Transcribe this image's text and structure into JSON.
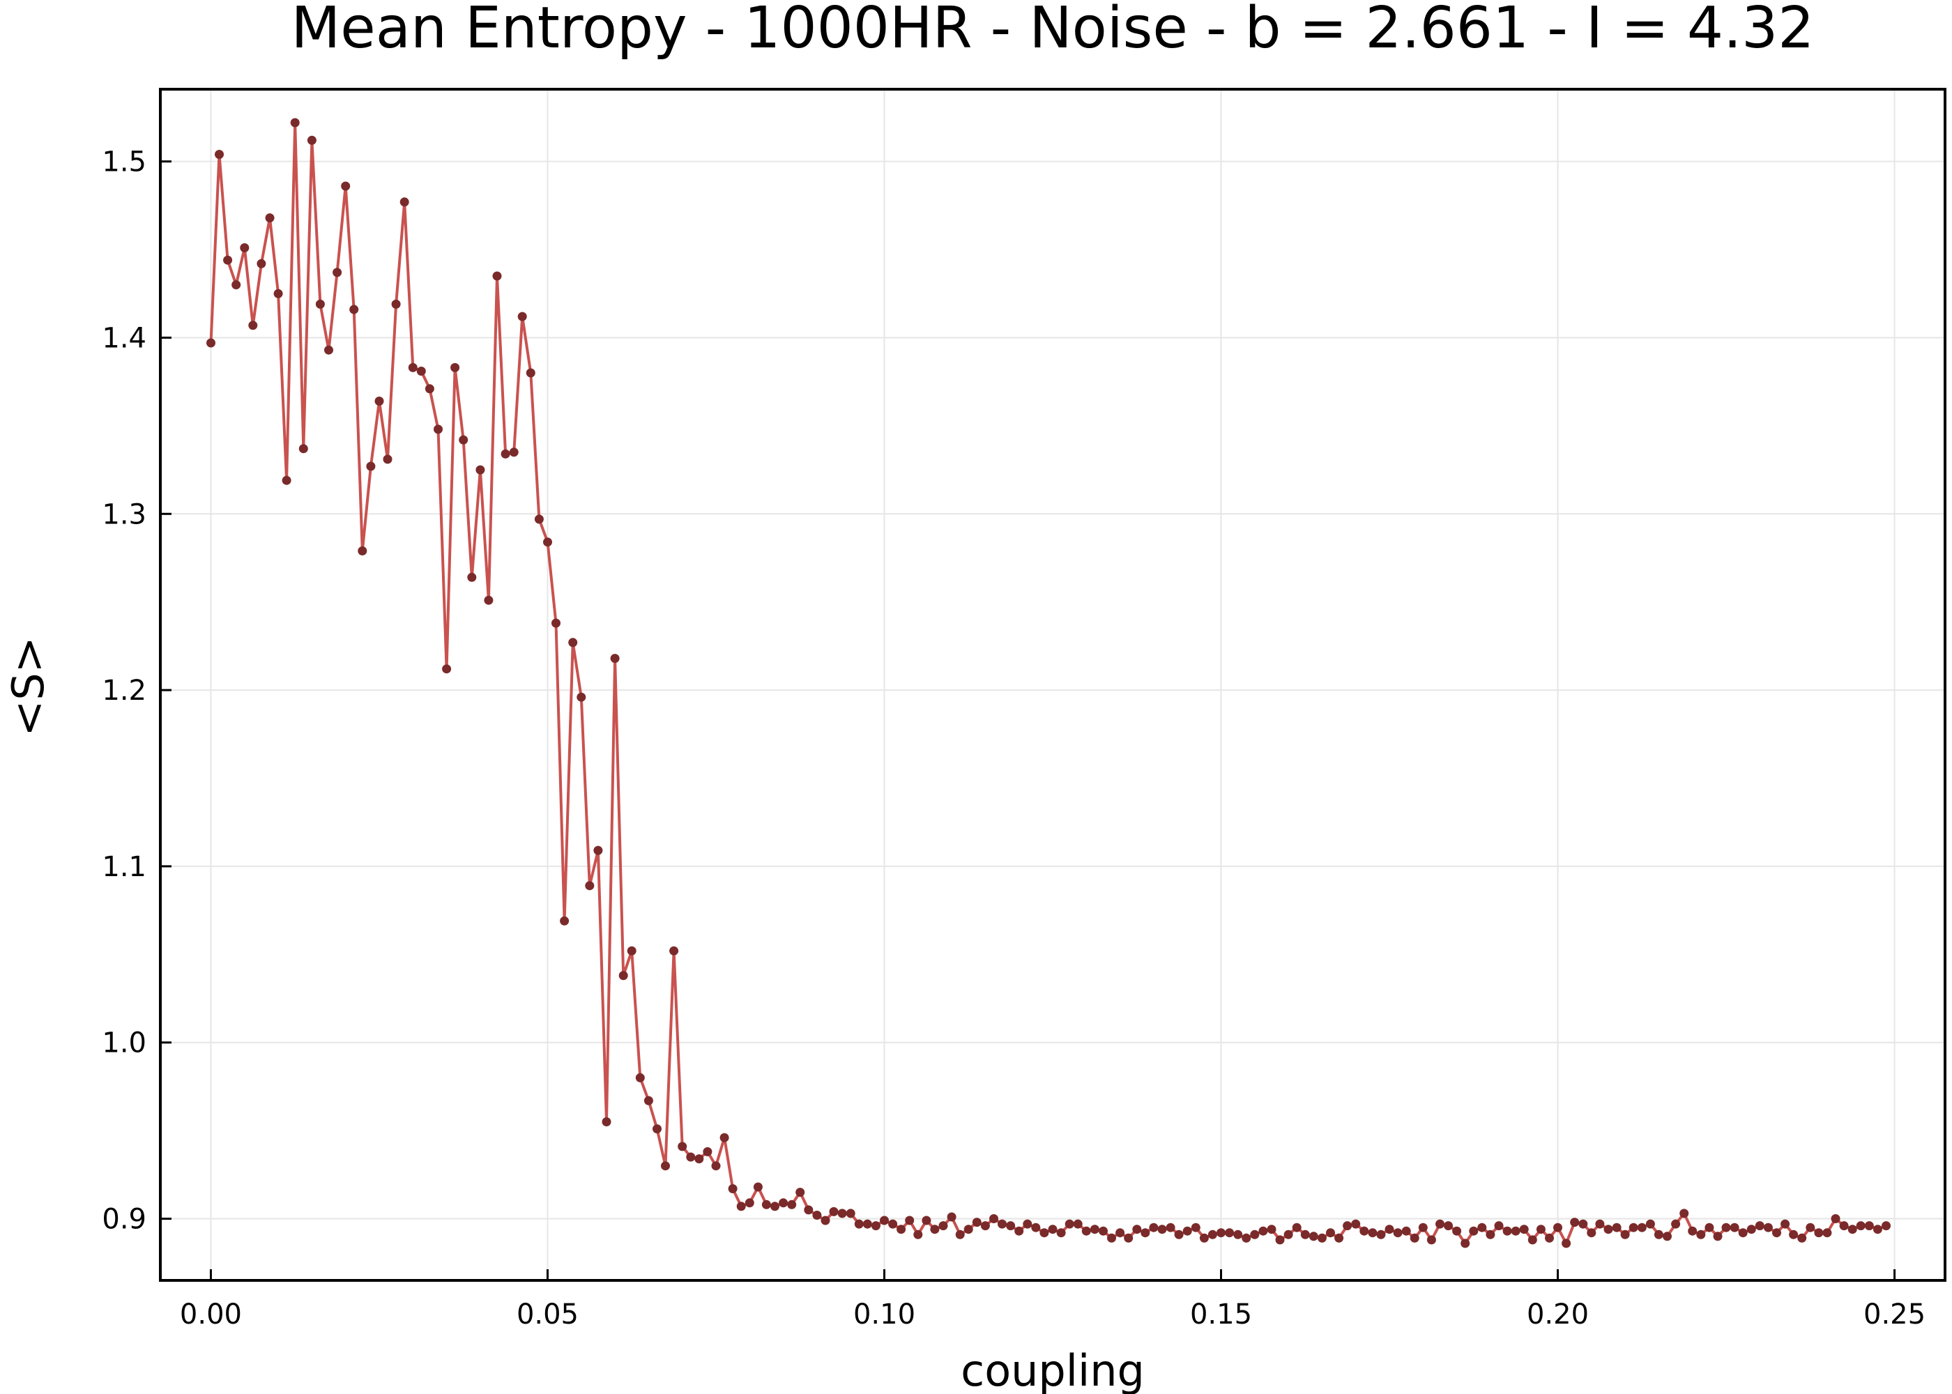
{
  "chart_data": {
    "type": "line",
    "title": "Mean Entropy - 1000HR - Noise - b = 2.661 - I = 4.32",
    "xlabel": "coupling",
    "ylabel": "<S>",
    "xlim": [
      -0.0075,
      0.2575
    ],
    "ylim": [
      0.865,
      1.541
    ],
    "xticks": [
      0.0,
      0.05,
      0.1,
      0.15,
      0.2,
      0.25
    ],
    "xtick_labels": [
      "0.00",
      "0.05",
      "0.10",
      "0.15",
      "0.20",
      "0.25"
    ],
    "yticks": [
      0.9,
      1.0,
      1.1,
      1.2,
      1.3,
      1.4,
      1.5
    ],
    "ytick_labels": [
      "0.9",
      "1.0",
      "1.1",
      "1.2",
      "1.3",
      "1.4",
      "1.5"
    ],
    "grid": true,
    "legend": false,
    "line_color": "#c9524f",
    "marker_color": "#7a2a2a",
    "series": [
      {
        "x_start": 0.0,
        "x_step": 0.00125,
        "values": [
          1.397,
          1.504,
          1.444,
          1.43,
          1.451,
          1.407,
          1.442,
          1.468,
          1.425,
          1.319,
          1.522,
          1.337,
          1.512,
          1.419,
          1.393,
          1.437,
          1.486,
          1.416,
          1.279,
          1.327,
          1.364,
          1.331,
          1.419,
          1.477,
          1.383,
          1.381,
          1.371,
          1.348,
          1.212,
          1.383,
          1.342,
          1.264,
          1.325,
          1.251,
          1.435,
          1.334,
          1.335,
          1.412,
          1.38,
          1.297,
          1.284,
          1.238,
          1.069,
          1.227,
          1.196,
          1.089,
          1.109,
          0.955,
          1.218,
          1.038,
          1.052,
          0.98,
          0.967,
          0.951,
          0.93,
          1.052,
          0.941,
          0.935,
          0.934,
          0.938,
          0.93,
          0.946,
          0.917,
          0.907,
          0.909,
          0.918,
          0.908,
          0.907,
          0.909,
          0.908,
          0.915,
          0.905,
          0.902,
          0.899,
          0.904,
          0.903,
          0.903,
          0.897,
          0.897,
          0.896,
          0.899,
          0.897,
          0.894,
          0.899,
          0.891,
          0.899,
          0.894,
          0.896,
          0.901,
          0.891,
          0.894,
          0.898,
          0.896,
          0.9,
          0.897,
          0.896,
          0.893,
          0.897,
          0.895,
          0.892,
          0.894,
          0.892,
          0.897,
          0.897,
          0.893,
          0.894,
          0.893,
          0.889,
          0.892,
          0.889,
          0.894,
          0.892,
          0.895,
          0.894,
          0.895,
          0.891,
          0.893,
          0.895,
          0.889,
          0.891,
          0.892,
          0.892,
          0.891,
          0.889,
          0.891,
          0.893,
          0.894,
          0.888,
          0.891,
          0.895,
          0.891,
          0.89,
          0.889,
          0.892,
          0.889,
          0.896,
          0.897,
          0.893,
          0.892,
          0.891,
          0.894,
          0.892,
          0.893,
          0.889,
          0.895,
          0.888,
          0.897,
          0.896,
          0.893,
          0.886,
          0.893,
          0.895,
          0.891,
          0.896,
          0.893,
          0.893,
          0.894,
          0.888,
          0.894,
          0.889,
          0.895,
          0.886,
          0.898,
          0.897,
          0.892,
          0.897,
          0.894,
          0.895,
          0.891,
          0.895,
          0.895,
          0.897,
          0.891,
          0.89,
          0.897,
          0.903,
          0.893,
          0.891,
          0.895,
          0.89,
          0.895,
          0.895,
          0.892,
          0.894,
          0.896,
          0.895,
          0.892,
          0.897,
          0.891,
          0.889,
          0.895,
          0.892,
          0.892,
          0.9,
          0.896,
          0.894,
          0.896,
          0.896,
          0.894,
          0.896
        ]
      }
    ]
  }
}
